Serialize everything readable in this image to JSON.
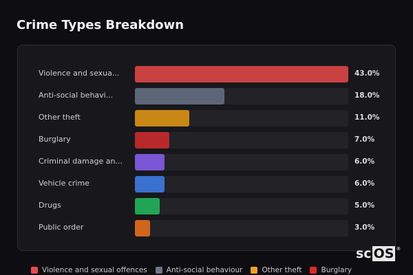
{
  "chart_data": {
    "type": "bar",
    "orientation": "horizontal",
    "title": "Crime Types Breakdown",
    "categories": [
      "Violence and sexua...",
      "Anti-social behavi...",
      "Other theft",
      "Burglary",
      "Criminal damage an...",
      "Vehicle crime",
      "Drugs",
      "Public order"
    ],
    "values": [
      43.0,
      18.0,
      11.0,
      7.0,
      6.0,
      6.0,
      5.0,
      3.0
    ],
    "value_labels": [
      "43.0%",
      "18.0%",
      "11.0%",
      "7.0%",
      "6.0%",
      "6.0%",
      "5.0%",
      "3.0%"
    ],
    "colors": [
      "#c94141",
      "#5c6677",
      "#c98716",
      "#b8292b",
      "#7a55d4",
      "#3a70d0",
      "#22a455",
      "#d0661e"
    ],
    "xlim": [
      0,
      43
    ],
    "legend": [
      {
        "label": "Violence and sexual offences",
        "color": "#e84a4a"
      },
      {
        "label": "Anti-social behaviour",
        "color": "#6b7689"
      },
      {
        "label": "Other theft",
        "color": "#f0a020"
      },
      {
        "label": "Burglary",
        "color": "#dc2a2a"
      }
    ],
    "legend_position": "bottom"
  },
  "logo": {
    "text_a": "sc",
    "text_b": "OS",
    "mark": "®"
  }
}
